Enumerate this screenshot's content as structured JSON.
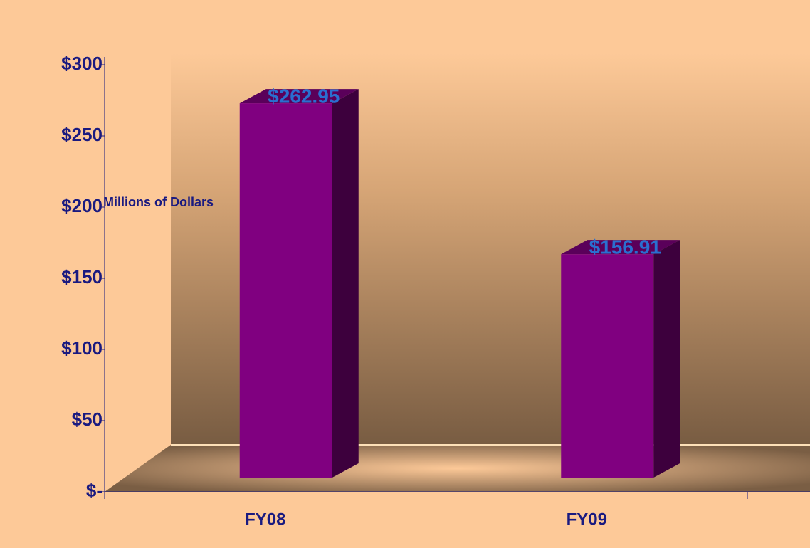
{
  "chart_data": {
    "type": "bar3d",
    "y_label": "Millions of Dollars",
    "categories": [
      "FY08",
      "FY09"
    ],
    "values": [
      262.95,
      156.91
    ],
    "value_labels": [
      "$262.95",
      "$156.91"
    ],
    "color": "#800080",
    "ylim": [
      0,
      300
    ],
    "yticks": [
      {
        "value": 0,
        "label": "$-"
      },
      {
        "value": 50,
        "label": "$50"
      },
      {
        "value": 100,
        "label": "$100"
      },
      {
        "value": 150,
        "label": "$150"
      },
      {
        "value": 200,
        "label": "$200"
      },
      {
        "value": 250,
        "label": "$250"
      },
      {
        "value": 300,
        "label": "$300"
      }
    ]
  }
}
